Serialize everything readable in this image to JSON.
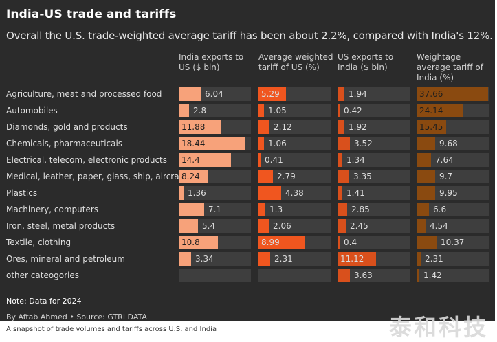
{
  "title": "India-US trade and tariffs",
  "subtitle": "Overall the U.S. trade-weighted average tariff has been about 2.2%, compared with India's 12%.",
  "note": "Note: Data for 2024",
  "byline": "By Aftab Ahmed • Source: GTRI DATA",
  "caption": "A snapshot of trade volumes and tariffs across U.S. and India",
  "watermark": "泰和科技",
  "chart_data": {
    "type": "table",
    "title": "India-US trade and tariffs",
    "columns": [
      {
        "key": "india_exports",
        "label": "India exports to US ($ bln)",
        "color": "#f7a27a",
        "max": 20
      },
      {
        "key": "us_tariff",
        "label": "Average weighted tariff of US (%)",
        "color": "#f0561f",
        "max": 14
      },
      {
        "key": "us_exports",
        "label": "US exports to India ($ bln)",
        "color": "#d9501c",
        "max": 21
      },
      {
        "key": "india_tariff",
        "label": "Weightage average tariff of India (%)",
        "color": "#8a4a10",
        "max": 38
      }
    ],
    "rows": [
      {
        "label": "Agriculture, meat and processed food",
        "india_exports": 6.04,
        "us_tariff": 5.29,
        "us_exports": 1.94,
        "india_tariff": 37.66
      },
      {
        "label": "Automobiles",
        "india_exports": 2.8,
        "us_tariff": 1.05,
        "us_exports": 0.42,
        "india_tariff": 24.14
      },
      {
        "label": "Diamonds, gold and products",
        "india_exports": 11.88,
        "us_tariff": 2.12,
        "us_exports": 1.92,
        "india_tariff": 15.45
      },
      {
        "label": "Chemicals, pharmaceuticals",
        "india_exports": 18.44,
        "us_tariff": 1.06,
        "us_exports": 3.52,
        "india_tariff": 9.68
      },
      {
        "label": "Electrical, telecom, electronic products",
        "india_exports": 14.4,
        "us_tariff": 0.41,
        "us_exports": 1.34,
        "india_tariff": 7.64
      },
      {
        "label": "Medical, leather, paper, glass, ship, aircraft",
        "india_exports": 8.24,
        "us_tariff": 2.79,
        "us_exports": 3.35,
        "india_tariff": 9.7
      },
      {
        "label": "Plastics",
        "india_exports": 1.36,
        "us_tariff": 4.38,
        "us_exports": 1.41,
        "india_tariff": 9.95
      },
      {
        "label": "Machinery, computers",
        "india_exports": 7.1,
        "us_tariff": 1.3,
        "us_exports": 2.85,
        "india_tariff": 6.6
      },
      {
        "label": "Iron, steel, metal products",
        "india_exports": 5.4,
        "us_tariff": 2.06,
        "us_exports": 2.45,
        "india_tariff": 4.54
      },
      {
        "label": "Textile, clothing",
        "india_exports": 10.8,
        "us_tariff": 8.99,
        "us_exports": 0.4,
        "india_tariff": 10.37
      },
      {
        "label": "Ores, mineral and petroleum",
        "india_exports": 3.34,
        "us_tariff": 2.31,
        "us_exports": 11.12,
        "india_tariff": 2.31
      },
      {
        "label": "other cateogories",
        "india_exports": null,
        "us_tariff": null,
        "us_exports": 3.63,
        "india_tariff": 1.42
      }
    ]
  }
}
